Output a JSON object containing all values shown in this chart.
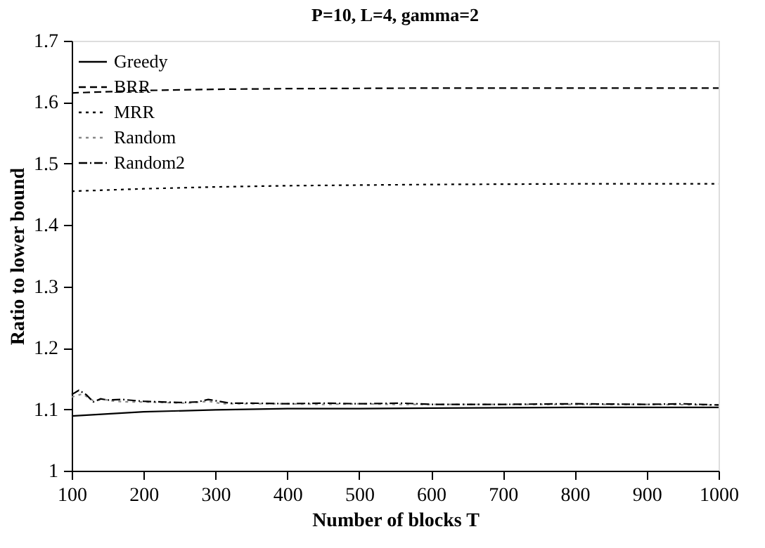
{
  "chart_data": {
    "type": "line",
    "title": "P=10, L=4, gamma=2",
    "xlabel": "Number of blocks T",
    "ylabel": "Ratio to lower bound",
    "xlim": [
      100,
      1000
    ],
    "ylim": [
      1,
      1.7
    ],
    "xticks": [
      100,
      200,
      300,
      400,
      500,
      600,
      700,
      800,
      900,
      1000
    ],
    "yticks": [
      1,
      1.1,
      1.2,
      1.3,
      1.4,
      1.5,
      1.6,
      1.7
    ],
    "grid": false,
    "legend": "top left",
    "marker": "none",
    "series": [
      {
        "name": "Greedy",
        "color": "#000000",
        "line_style": "solid",
        "x": [
          100,
          200,
          300,
          400,
          500,
          600,
          800,
          1000
        ],
        "values": [
          1.089,
          1.096,
          1.099,
          1.101,
          1.101,
          1.102,
          1.103,
          1.103
        ]
      },
      {
        "name": "BRR",
        "color": "#000000",
        "line_style": "dashed",
        "x": [
          100,
          200,
          300,
          400,
          600,
          800,
          1000
        ],
        "values": [
          1.615,
          1.619,
          1.621,
          1.622,
          1.623,
          1.623,
          1.623
        ]
      },
      {
        "name": "MRR",
        "color": "#000000",
        "line_style": "dotted",
        "x": [
          100,
          200,
          300,
          400,
          600,
          800,
          1000
        ],
        "values": [
          1.455,
          1.459,
          1.462,
          1.464,
          1.466,
          1.467,
          1.467
        ]
      },
      {
        "name": "Random",
        "color": "#888888",
        "line_style": "dotted",
        "x": [
          100,
          115,
          130,
          145,
          160,
          180,
          200,
          230,
          260,
          290,
          310,
          350,
          400,
          450,
          500,
          550,
          600,
          700,
          800,
          900,
          1000
        ],
        "values": [
          1.12,
          1.125,
          1.114,
          1.116,
          1.113,
          1.112,
          1.112,
          1.111,
          1.11,
          1.113,
          1.109,
          1.109,
          1.109,
          1.108,
          1.109,
          1.108,
          1.108,
          1.108,
          1.108,
          1.108,
          1.107
        ]
      },
      {
        "name": "Random2",
        "color": "#000000",
        "line_style": "dashdot",
        "x": [
          100,
          110,
          120,
          130,
          140,
          150,
          170,
          200,
          250,
          275,
          290,
          320,
          350,
          400,
          450,
          500,
          560,
          600,
          700,
          800,
          900,
          950,
          1000
        ],
        "values": [
          1.124,
          1.131,
          1.124,
          1.112,
          1.117,
          1.115,
          1.116,
          1.113,
          1.111,
          1.112,
          1.116,
          1.11,
          1.11,
          1.109,
          1.11,
          1.109,
          1.11,
          1.108,
          1.108,
          1.109,
          1.108,
          1.109,
          1.107
        ]
      }
    ]
  }
}
